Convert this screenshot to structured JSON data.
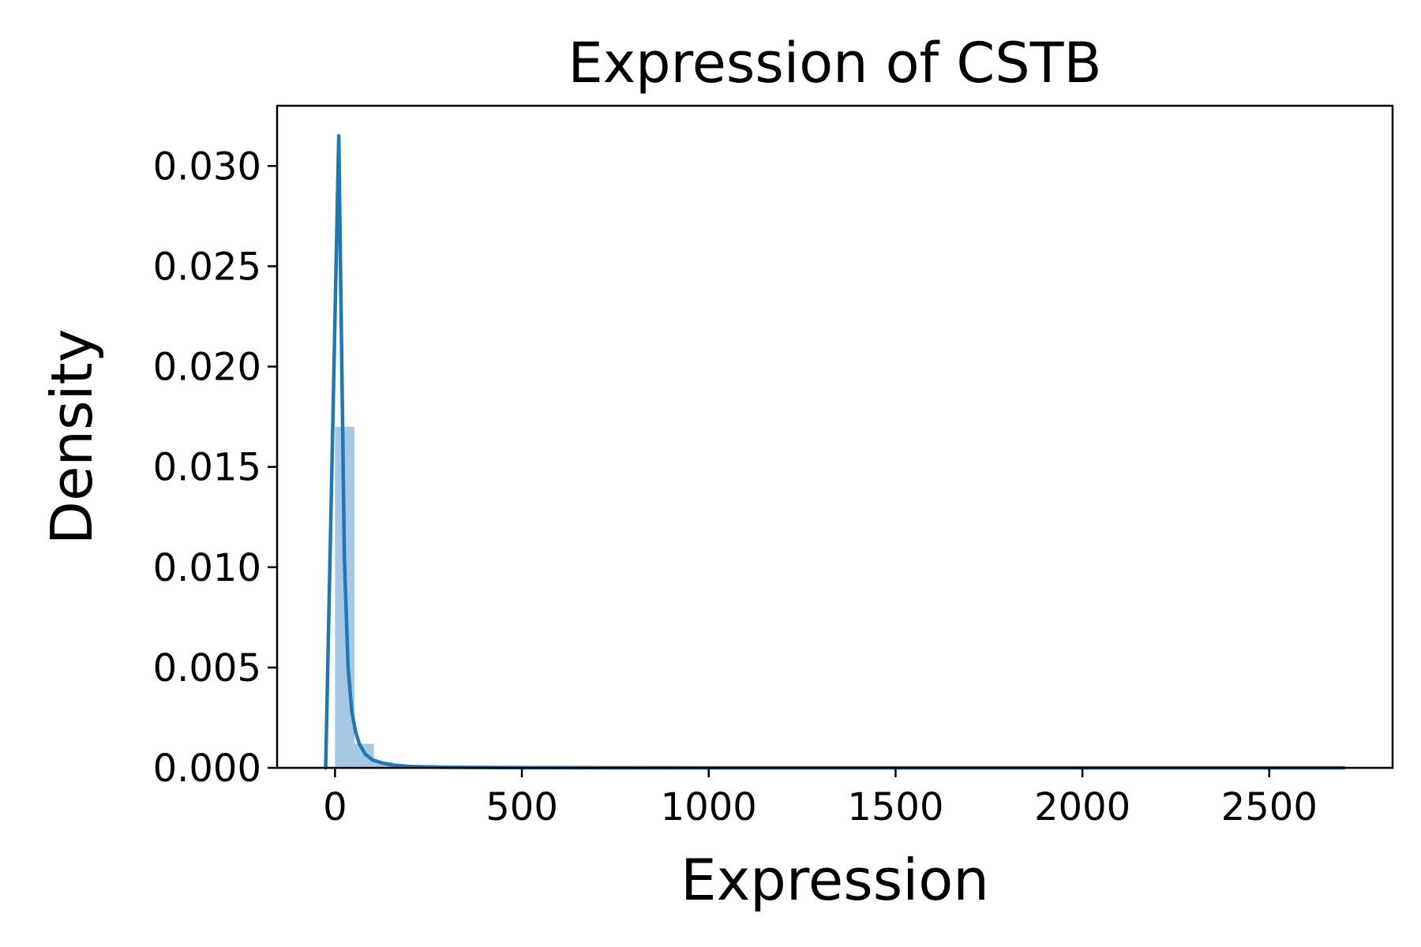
{
  "chart_data": {
    "type": "bar",
    "title": "Expression of CSTB",
    "xlabel": "Expression",
    "ylabel": "Density",
    "xlim": [
      -155,
      2830
    ],
    "ylim": [
      0,
      0.033
    ],
    "grid": false,
    "x_ticks": [
      0,
      500,
      1000,
      1500,
      2000,
      2500
    ],
    "x_tick_labels": [
      "0",
      "500",
      "1000",
      "1500",
      "2000",
      "2500"
    ],
    "y_ticks": [
      0.0,
      0.005,
      0.01,
      0.015,
      0.02,
      0.025,
      0.03
    ],
    "y_tick_labels": [
      "0.000",
      "0.005",
      "0.010",
      "0.015",
      "0.020",
      "0.025",
      "0.030"
    ],
    "histogram": {
      "color": "#a6c8e4",
      "bins": [
        {
          "x0": 0,
          "x1": 52,
          "density": 0.017
        },
        {
          "x0": 52,
          "x1": 104,
          "density": 0.0012
        },
        {
          "x0": 104,
          "x1": 156,
          "density": 0.0003
        },
        {
          "x0": 156,
          "x1": 208,
          "density": 0.0001
        },
        {
          "x0": 208,
          "x1": 2700,
          "density": 0.0
        }
      ]
    },
    "kde": {
      "color": "#1f77b4",
      "x": [
        -25,
        10,
        25,
        35,
        45,
        55,
        65,
        80,
        100,
        125,
        150,
        200,
        300,
        500,
        1000,
        1500,
        2000,
        2500,
        2700
      ],
      "y": [
        0.0,
        0.0315,
        0.0105,
        0.005,
        0.0028,
        0.0018,
        0.0012,
        0.0007,
        0.0004,
        0.00025,
        0.00015,
        7e-05,
        3e-05,
        1e-05,
        0.0,
        0.0,
        0.0,
        0.0,
        0.0
      ]
    }
  }
}
